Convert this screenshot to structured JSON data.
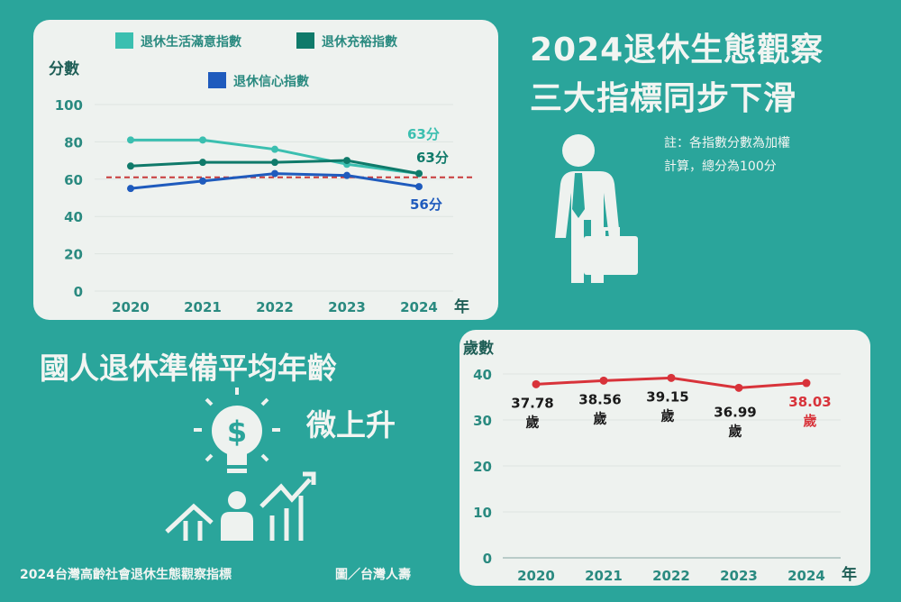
{
  "headline": {
    "line1": "2024退休生態觀察",
    "line2": "三大指標同步下滑"
  },
  "note": {
    "line1": "註：各指數分數為加權",
    "line2": "計算，總分為100分"
  },
  "age_headline": {
    "line1": "國人退休準備平均年齡",
    "line2": "微上升"
  },
  "footer": {
    "source": "2024台灣高齡社會退休生態觀察指標",
    "credit": "圖／台灣人壽"
  },
  "icons": [
    "businessman-icon",
    "briefcase-icon",
    "lightbulb-dollar-icon",
    "growth-chart-icon"
  ],
  "colors": {
    "background": "#2aa59b",
    "panel": "#eef2ef",
    "satisfaction": "#3bbfb0",
    "adequacy": "#0f7a6a",
    "confidence": "#1f5bbd",
    "age": "#d8333a",
    "axis_text": "#2a8a80"
  },
  "chart_data": [
    {
      "type": "line",
      "title": "",
      "ylabel": "分數",
      "xlabel": "年",
      "categories": [
        "2020",
        "2021",
        "2022",
        "2023",
        "2024"
      ],
      "ylim": [
        0,
        100
      ],
      "yticks": [
        "0",
        "20",
        "40",
        "60",
        "80",
        "100"
      ],
      "grid": true,
      "legend_position": "top",
      "reference_line": 61,
      "series": [
        {
          "name": "退休生活滿意指數",
          "values": [
            81,
            81,
            76,
            68,
            63
          ],
          "end_label": "63分"
        },
        {
          "name": "退休充裕指數",
          "values": [
            67,
            69,
            69,
            70,
            63
          ],
          "end_label": "63分"
        },
        {
          "name": "退休信心指數",
          "values": [
            55,
            59,
            63,
            62,
            56
          ],
          "end_label": "56分"
        }
      ]
    },
    {
      "type": "line",
      "ylabel": "歲數",
      "xlabel": "年",
      "categories": [
        "2020",
        "2021",
        "2022",
        "2023",
        "2024"
      ],
      "ylim": [
        0,
        40
      ],
      "yticks": [
        "0",
        "10",
        "20",
        "30",
        "40"
      ],
      "grid": true,
      "series": [
        {
          "name": "平均年齡",
          "values": [
            37.78,
            38.56,
            39.15,
            36.99,
            38.03
          ]
        }
      ],
      "data_labels": [
        "37.78",
        "38.56",
        "39.15",
        "36.99",
        "38.03"
      ],
      "unit": "歲"
    }
  ]
}
